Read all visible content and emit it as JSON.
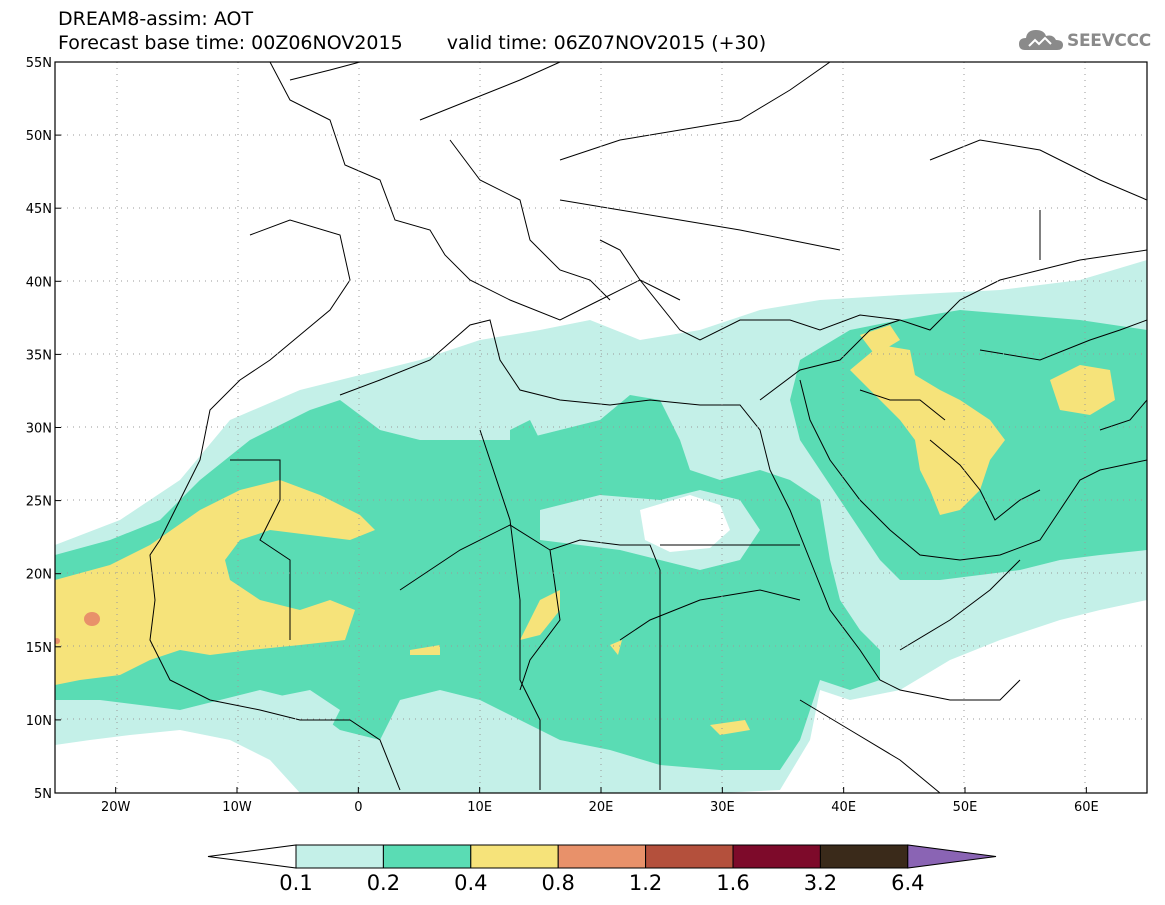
{
  "header": {
    "line1": "DREAM8-assim: AOT",
    "base_time": "Forecast base time: 00Z06NOV2015",
    "valid_time": "valid time: 06Z07NOV2015 (+30)"
  },
  "logo": {
    "text": "SEEVCCC",
    "icon": "cloud-icon"
  },
  "map": {
    "lat_labels": [
      "55N",
      "50N",
      "45N",
      "40N",
      "35N",
      "30N",
      "25N",
      "20N",
      "15N",
      "10N",
      "5N"
    ],
    "lat_values": [
      55,
      50,
      45,
      40,
      35,
      30,
      25,
      20,
      15,
      10,
      5
    ],
    "lon_labels": [
      "20W",
      "10W",
      "0",
      "10E",
      "20E",
      "30E",
      "40E",
      "50E",
      "60E"
    ],
    "lon_values": [
      -20,
      -10,
      0,
      10,
      20,
      30,
      40,
      50,
      60
    ],
    "lon_range": [
      -25,
      65
    ],
    "lat_range": [
      5,
      55
    ]
  },
  "colorbar": {
    "labels": [
      "0.1",
      "0.2",
      "0.4",
      "0.8",
      "1.2",
      "1.6",
      "3.2",
      "6.4"
    ],
    "colors": [
      "#ffffff",
      "#c4f0e8",
      "#5adcb4",
      "#f6e37a",
      "#e8916a",
      "#b4503c",
      "#7d0a2a",
      "#3a2a1a",
      "#8a64b4"
    ]
  },
  "colors": {
    "level1": "#c4f0e8",
    "level2": "#5adcb4",
    "level3": "#f6e37a",
    "level4": "#e8916a"
  }
}
